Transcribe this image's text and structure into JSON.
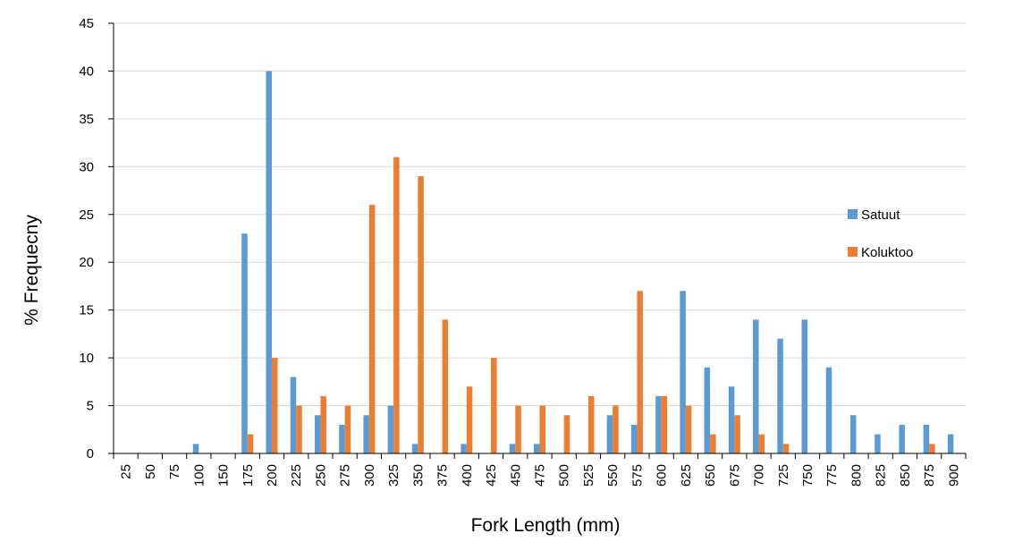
{
  "chart_data": {
    "type": "bar",
    "title": "",
    "xlabel": "Fork Length (mm)",
    "ylabel": "% Frequecny",
    "ylim": [
      0,
      45
    ],
    "yticks": [
      "0",
      "5",
      "10",
      "15",
      "20",
      "25",
      "30",
      "35",
      "40",
      "45"
    ],
    "grid": "horizontal",
    "legend_position": "right",
    "categories": [
      "25",
      "50",
      "75",
      "100",
      "150",
      "175",
      "200",
      "225",
      "250",
      "275",
      "300",
      "325",
      "350",
      "375",
      "400",
      "425",
      "450",
      "475",
      "500",
      "525",
      "550",
      "575",
      "600",
      "625",
      "650",
      "675",
      "700",
      "725",
      "750",
      "775",
      "800",
      "825",
      "850",
      "875",
      "900"
    ],
    "series": [
      {
        "name": "Satuut",
        "color": "#5B9BD5",
        "values": [
          0,
          0,
          0,
          1,
          0,
          23,
          40,
          8,
          4,
          3,
          4,
          5,
          1,
          0,
          1,
          0,
          1,
          1,
          0,
          0,
          4,
          3,
          6,
          17,
          9,
          7,
          14,
          12,
          14,
          9,
          4,
          2,
          3,
          3,
          2
        ]
      },
      {
        "name": "Koluktoo",
        "color": "#ED7D31",
        "values": [
          0,
          0,
          0,
          0,
          0,
          2,
          10,
          5,
          6,
          5,
          26,
          31,
          29,
          14,
          7,
          10,
          5,
          5,
          4,
          6,
          5,
          17,
          6,
          5,
          2,
          4,
          2,
          1,
          0,
          0,
          0,
          0,
          0,
          1,
          0
        ]
      }
    ]
  }
}
